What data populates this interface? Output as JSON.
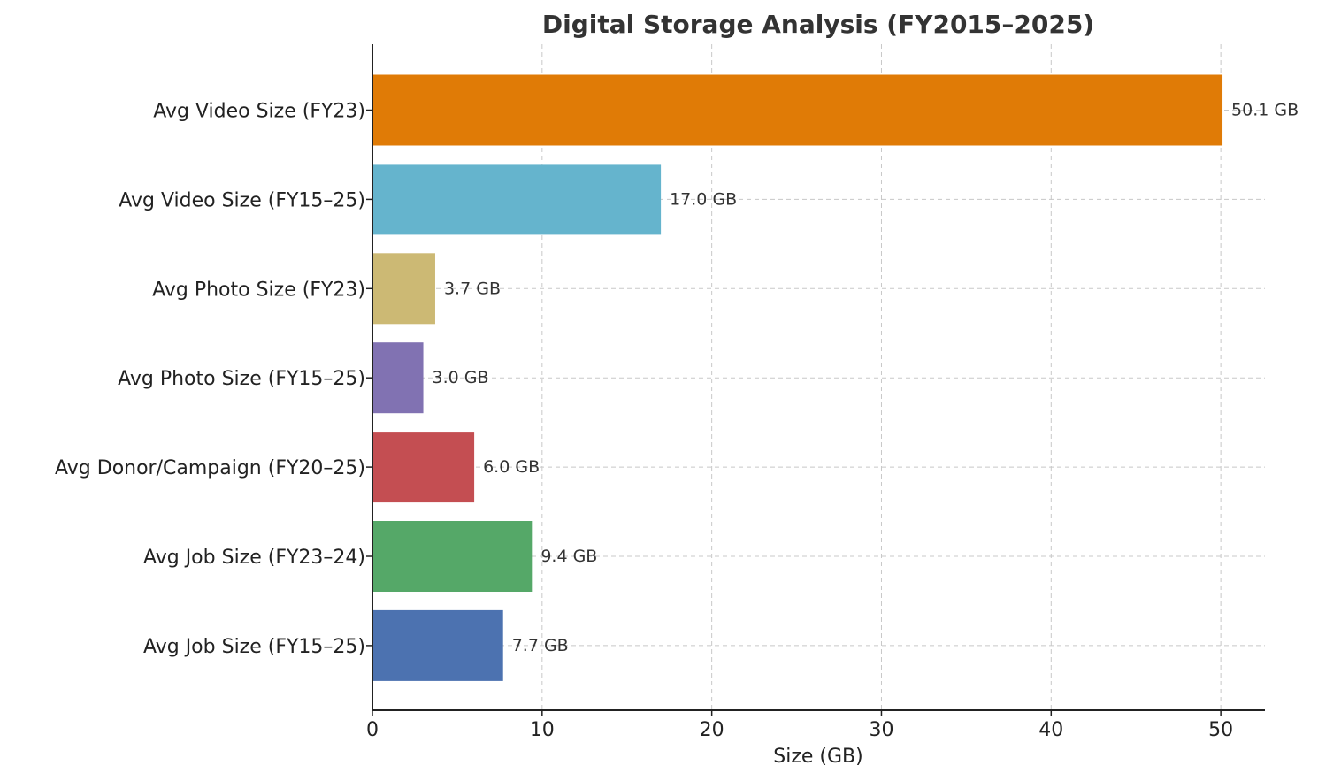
{
  "chart_data": {
    "type": "bar",
    "orientation": "horizontal",
    "title": "Digital Storage Analysis (FY2015–2025)",
    "xlabel": "Size (GB)",
    "ylabel": "",
    "xlim": [
      0,
      52.6
    ],
    "xticks": [
      0,
      10,
      20,
      30,
      40,
      50
    ],
    "xtick_labels": [
      "0",
      "10",
      "20",
      "30",
      "40",
      "50"
    ],
    "grid": true,
    "categories": [
      "Avg Video Size (FY23)",
      "Avg Video Size (FY15–25)",
      "Avg Photo Size (FY23)",
      "Avg Photo Size (FY15–25)",
      "Avg Donor/Campaign (FY20–25)",
      "Avg Job Size (FY23–24)",
      "Avg Job Size (FY15–25)"
    ],
    "values": [
      50.1,
      17.0,
      3.7,
      3.0,
      6.0,
      9.4,
      7.7
    ],
    "value_labels": [
      "50.1 GB",
      "17.0 GB",
      "3.7 GB",
      "3.0 GB",
      "6.0 GB",
      "9.4 GB",
      "7.7 GB"
    ],
    "colors": [
      "#e07b06",
      "#65b4cd",
      "#ccb974",
      "#8172b2",
      "#c44e52",
      "#55a868",
      "#4c72b0"
    ]
  }
}
